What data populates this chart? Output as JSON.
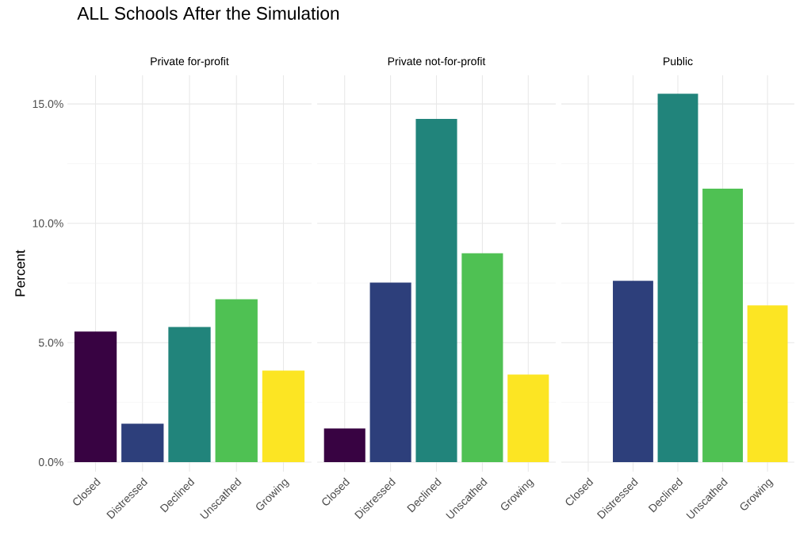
{
  "chart_data": [
    {
      "type": "bar",
      "title": "ALL Schools After the Simulation",
      "subtitle": "Private for-profit",
      "ylabel": "Percent",
      "categories": [
        "Closed",
        "Distressed",
        "Declined",
        "Unscathed",
        "Growing"
      ],
      "values": [
        5.47,
        1.61,
        5.66,
        6.82,
        3.83
      ],
      "colors": [
        "#380342",
        "#2d3f7b",
        "#21847b",
        "#4fc153",
        "#fce523"
      ],
      "ylim": [
        -0.4,
        16.2
      ],
      "yticks": [
        {
          "value": 0,
          "label": "0.0%"
        },
        {
          "value": 5,
          "label": "5.0%"
        },
        {
          "value": 10,
          "label": "10.0%"
        },
        {
          "value": 15,
          "label": "15.0%"
        }
      ],
      "grid": true
    },
    {
      "type": "bar",
      "subtitle": "Private not-for-profit",
      "categories": [
        "Closed",
        "Distressed",
        "Declined",
        "Unscathed",
        "Growing"
      ],
      "values": [
        1.41,
        7.52,
        14.37,
        8.75,
        3.67
      ],
      "colors": [
        "#380342",
        "#2d3f7b",
        "#21847b",
        "#4fc153",
        "#fce523"
      ],
      "ylim": [
        -0.4,
        16.2
      ],
      "yticks": [
        0,
        5,
        10,
        15
      ],
      "grid": true,
      "tick_labels": "x"
    },
    {
      "type": "bar",
      "subtitle": "Public",
      "categories": [
        "Closed",
        "Distressed",
        "Declined",
        "Unscathed",
        "Growing"
      ],
      "values": [
        0,
        7.59,
        15.43,
        11.45,
        6.56
      ],
      "colors": [
        "#380342",
        "#2d3f7b",
        "#21847b",
        "#4fc153",
        "#fce523"
      ],
      "ylim": [
        -0.4,
        16.2
      ],
      "yticks": [
        0,
        5,
        10,
        15
      ],
      "grid": true,
      "tick_labels": "x"
    }
  ]
}
